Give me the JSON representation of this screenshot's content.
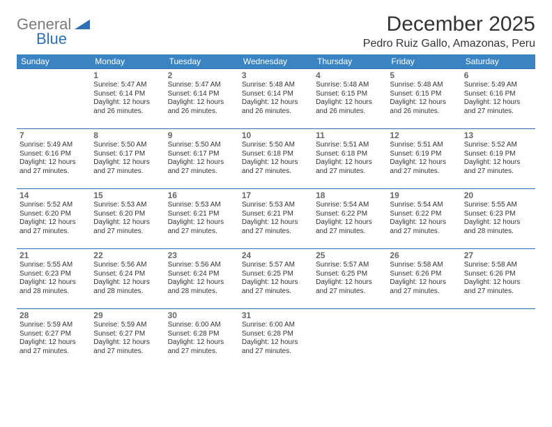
{
  "logo": {
    "word1": "General",
    "word2": "Blue",
    "color_general": "#7a7a7a",
    "color_blue": "#2f6fb3"
  },
  "title": "December 2025",
  "location": "Pedro Ruiz Gallo, Amazonas, Peru",
  "header_bg": "#3b84c4",
  "header_fg": "#ffffff",
  "rule_color": "#2f6fb3",
  "day_headers": [
    "Sunday",
    "Monday",
    "Tuesday",
    "Wednesday",
    "Thursday",
    "Friday",
    "Saturday"
  ],
  "weeks": [
    [
      null,
      {
        "n": "1",
        "sr": "5:47 AM",
        "ss": "6:14 PM",
        "dl": "12 hours and 26 minutes."
      },
      {
        "n": "2",
        "sr": "5:47 AM",
        "ss": "6:14 PM",
        "dl": "12 hours and 26 minutes."
      },
      {
        "n": "3",
        "sr": "5:48 AM",
        "ss": "6:14 PM",
        "dl": "12 hours and 26 minutes."
      },
      {
        "n": "4",
        "sr": "5:48 AM",
        "ss": "6:15 PM",
        "dl": "12 hours and 26 minutes."
      },
      {
        "n": "5",
        "sr": "5:48 AM",
        "ss": "6:15 PM",
        "dl": "12 hours and 26 minutes."
      },
      {
        "n": "6",
        "sr": "5:49 AM",
        "ss": "6:16 PM",
        "dl": "12 hours and 27 minutes."
      }
    ],
    [
      {
        "n": "7",
        "sr": "5:49 AM",
        "ss": "6:16 PM",
        "dl": "12 hours and 27 minutes."
      },
      {
        "n": "8",
        "sr": "5:50 AM",
        "ss": "6:17 PM",
        "dl": "12 hours and 27 minutes."
      },
      {
        "n": "9",
        "sr": "5:50 AM",
        "ss": "6:17 PM",
        "dl": "12 hours and 27 minutes."
      },
      {
        "n": "10",
        "sr": "5:50 AM",
        "ss": "6:18 PM",
        "dl": "12 hours and 27 minutes."
      },
      {
        "n": "11",
        "sr": "5:51 AM",
        "ss": "6:18 PM",
        "dl": "12 hours and 27 minutes."
      },
      {
        "n": "12",
        "sr": "5:51 AM",
        "ss": "6:19 PM",
        "dl": "12 hours and 27 minutes."
      },
      {
        "n": "13",
        "sr": "5:52 AM",
        "ss": "6:19 PM",
        "dl": "12 hours and 27 minutes."
      }
    ],
    [
      {
        "n": "14",
        "sr": "5:52 AM",
        "ss": "6:20 PM",
        "dl": "12 hours and 27 minutes."
      },
      {
        "n": "15",
        "sr": "5:53 AM",
        "ss": "6:20 PM",
        "dl": "12 hours and 27 minutes."
      },
      {
        "n": "16",
        "sr": "5:53 AM",
        "ss": "6:21 PM",
        "dl": "12 hours and 27 minutes."
      },
      {
        "n": "17",
        "sr": "5:53 AM",
        "ss": "6:21 PM",
        "dl": "12 hours and 27 minutes."
      },
      {
        "n": "18",
        "sr": "5:54 AM",
        "ss": "6:22 PM",
        "dl": "12 hours and 27 minutes."
      },
      {
        "n": "19",
        "sr": "5:54 AM",
        "ss": "6:22 PM",
        "dl": "12 hours and 27 minutes."
      },
      {
        "n": "20",
        "sr": "5:55 AM",
        "ss": "6:23 PM",
        "dl": "12 hours and 28 minutes."
      }
    ],
    [
      {
        "n": "21",
        "sr": "5:55 AM",
        "ss": "6:23 PM",
        "dl": "12 hours and 28 minutes."
      },
      {
        "n": "22",
        "sr": "5:56 AM",
        "ss": "6:24 PM",
        "dl": "12 hours and 28 minutes."
      },
      {
        "n": "23",
        "sr": "5:56 AM",
        "ss": "6:24 PM",
        "dl": "12 hours and 28 minutes."
      },
      {
        "n": "24",
        "sr": "5:57 AM",
        "ss": "6:25 PM",
        "dl": "12 hours and 27 minutes."
      },
      {
        "n": "25",
        "sr": "5:57 AM",
        "ss": "6:25 PM",
        "dl": "12 hours and 27 minutes."
      },
      {
        "n": "26",
        "sr": "5:58 AM",
        "ss": "6:26 PM",
        "dl": "12 hours and 27 minutes."
      },
      {
        "n": "27",
        "sr": "5:58 AM",
        "ss": "6:26 PM",
        "dl": "12 hours and 27 minutes."
      }
    ],
    [
      {
        "n": "28",
        "sr": "5:59 AM",
        "ss": "6:27 PM",
        "dl": "12 hours and 27 minutes."
      },
      {
        "n": "29",
        "sr": "5:59 AM",
        "ss": "6:27 PM",
        "dl": "12 hours and 27 minutes."
      },
      {
        "n": "30",
        "sr": "6:00 AM",
        "ss": "6:28 PM",
        "dl": "12 hours and 27 minutes."
      },
      {
        "n": "31",
        "sr": "6:00 AM",
        "ss": "6:28 PM",
        "dl": "12 hours and 27 minutes."
      },
      null,
      null,
      null
    ]
  ],
  "labels": {
    "sunrise": "Sunrise:",
    "sunset": "Sunset:",
    "daylight": "Daylight:"
  }
}
